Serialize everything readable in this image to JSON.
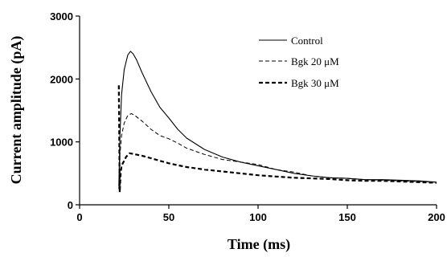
{
  "chart_data": {
    "type": "line",
    "title": "",
    "xlabel": "Time (ms)",
    "ylabel": "Current amplitude (pA)",
    "xlim": [
      0,
      200
    ],
    "ylim": [
      0,
      3000
    ],
    "x_ticks": [
      0,
      50,
      100,
      150,
      200
    ],
    "y_ticks": [
      0,
      1000,
      2000,
      3000
    ],
    "grid": false,
    "legend_position": "top-right",
    "series": [
      {
        "name": "Control",
        "style": "solid",
        "color": "#000000",
        "x": [
          22,
          22.6,
          23.5,
          25,
          27,
          28.5,
          30,
          32,
          35,
          40,
          45,
          50,
          55,
          60,
          70,
          80,
          90,
          100,
          110,
          120,
          130,
          140,
          150,
          160,
          170,
          180,
          190,
          200
        ],
        "y": [
          300,
          1100,
          1750,
          2150,
          2380,
          2440,
          2400,
          2300,
          2100,
          1800,
          1550,
          1380,
          1200,
          1060,
          880,
          760,
          680,
          620,
          560,
          500,
          460,
          430,
          420,
          400,
          400,
          390,
          380,
          360
        ]
      },
      {
        "name": "Bgk 20 μM",
        "style": "thin-dashed",
        "color": "#000000",
        "x": [
          22,
          22.6,
          23.5,
          25,
          27,
          29,
          31,
          35,
          40,
          45,
          50,
          55,
          60,
          70,
          80,
          90,
          100,
          110,
          120,
          130,
          140,
          150,
          160,
          170,
          180,
          190,
          200
        ],
        "y": [
          250,
          800,
          1100,
          1300,
          1420,
          1450,
          1420,
          1330,
          1200,
          1100,
          1050,
          980,
          900,
          800,
          720,
          680,
          640,
          560,
          520,
          460,
          430,
          420,
          400,
          390,
          380,
          370,
          360
        ]
      },
      {
        "name": "Bgk 30 μM",
        "style": "thick-dashed",
        "color": "#000000",
        "x": [
          22,
          22.5,
          23,
          23.5,
          24,
          25,
          26,
          28,
          30,
          35,
          40,
          45,
          50,
          55,
          60,
          70,
          80,
          90,
          100,
          110,
          120,
          130,
          140,
          150,
          160,
          170,
          180,
          190,
          200
        ],
        "y": [
          1900,
          200,
          500,
          620,
          650,
          700,
          760,
          820,
          810,
          780,
          740,
          700,
          660,
          630,
          600,
          560,
          530,
          500,
          470,
          450,
          430,
          420,
          410,
          390,
          380,
          380,
          370,
          360,
          350
        ]
      }
    ]
  }
}
